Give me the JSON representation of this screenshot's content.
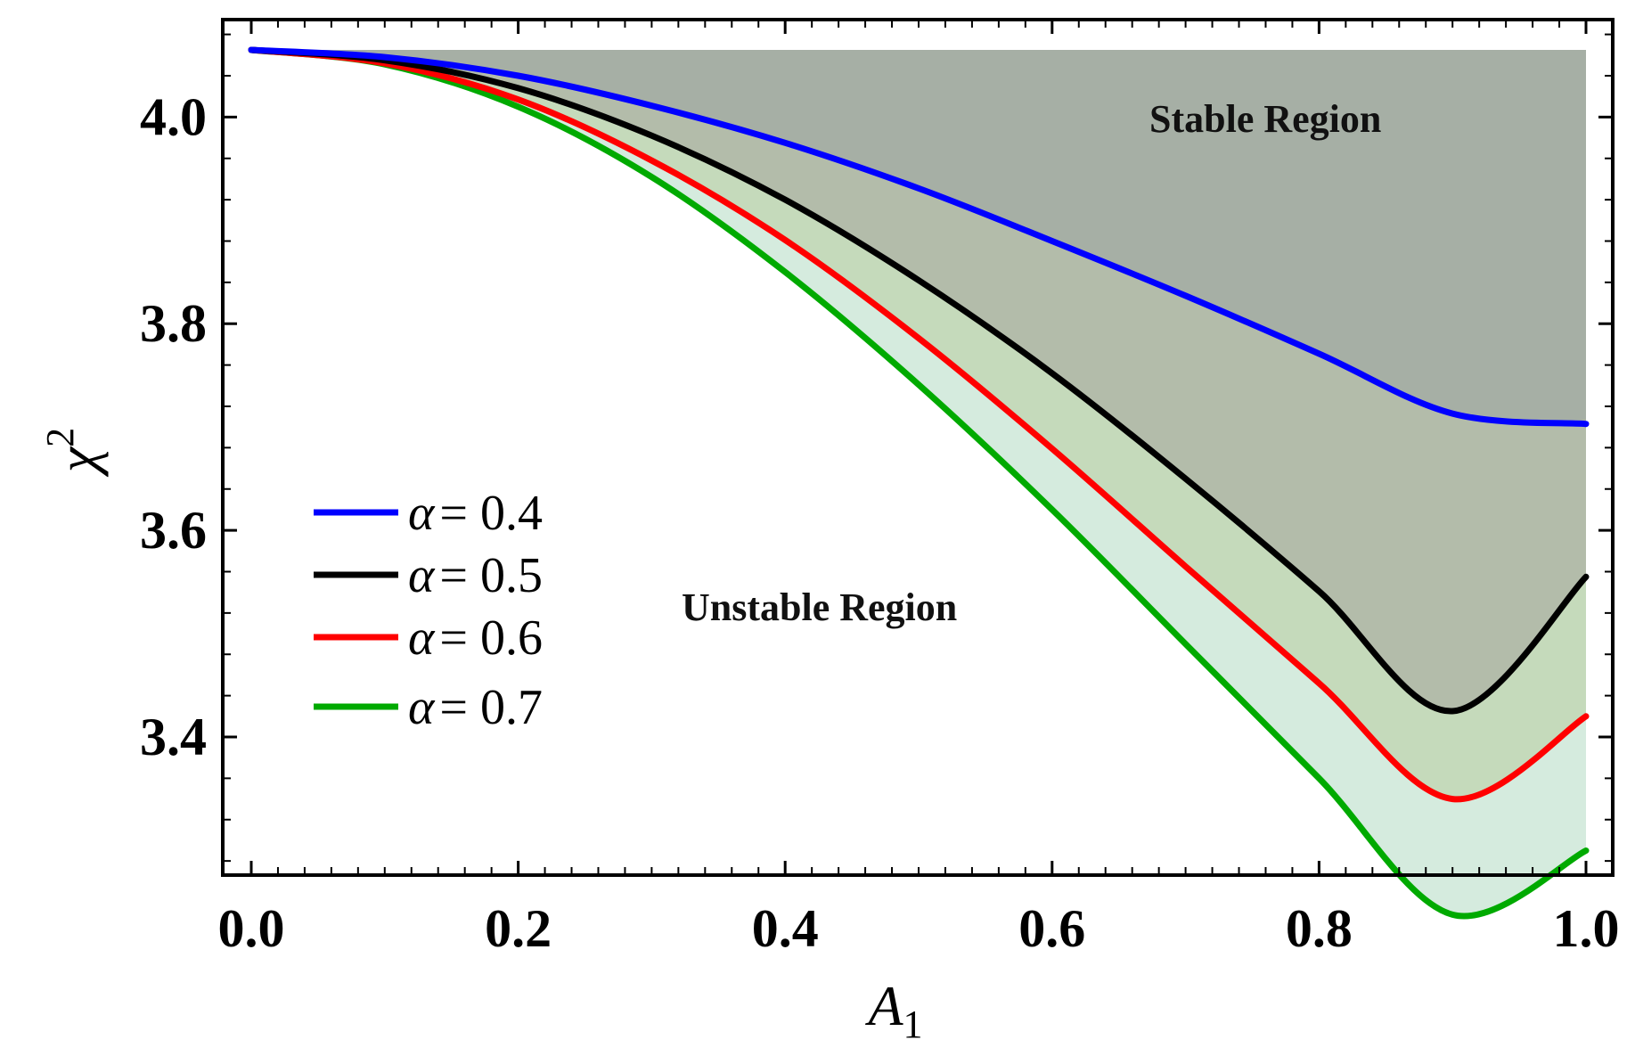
{
  "chart_data": {
    "type": "line",
    "title": "",
    "xlabel": "A",
    "xlabel_subscript": "1",
    "ylabel": "χ",
    "ylabel_superscript": "2",
    "xlim": [
      0.0,
      1.0
    ],
    "ylim": [
      3.28,
      4.07
    ],
    "grid": false,
    "legend_position": "left-middle",
    "x_ticks": [
      0.0,
      0.2,
      0.4,
      0.6,
      0.8,
      1.0
    ],
    "x_tick_labels": [
      "0.0",
      "0.2",
      "0.4",
      "0.6",
      "0.8",
      "1.0"
    ],
    "y_ticks": [
      3.4,
      3.6,
      3.8,
      4.0
    ],
    "y_tick_labels": [
      "3.4",
      "3.6",
      "3.8",
      "4.0"
    ],
    "upper_bound": 4.065,
    "x": [
      0.0,
      0.1,
      0.2,
      0.3,
      0.4,
      0.5,
      0.6,
      0.7,
      0.8,
      0.9,
      1.0
    ],
    "series": [
      {
        "name": "α = 0.4",
        "legend_symbol": "α",
        "legend_value": "= 0.4",
        "color": "#0000ff",
        "values": [
          4.065,
          4.058,
          4.04,
          4.011,
          3.975,
          3.931,
          3.88,
          3.827,
          3.771,
          3.713,
          3.703
        ]
      },
      {
        "name": "α = 0.5",
        "legend_symbol": "α",
        "legend_value": "= 0.5",
        "color": "#000000",
        "values": [
          4.065,
          4.055,
          4.028,
          3.982,
          3.92,
          3.842,
          3.752,
          3.65,
          3.541,
          3.425,
          3.555
        ]
      },
      {
        "name": "α = 0.6",
        "legend_symbol": "α",
        "legend_value": "= 0.6",
        "color": "#ff0000",
        "values": [
          4.065,
          4.052,
          4.017,
          3.958,
          3.881,
          3.786,
          3.679,
          3.565,
          3.452,
          3.34,
          3.42
        ]
      },
      {
        "name": "α = 0.7",
        "legend_symbol": "α",
        "legend_value": "= 0.7",
        "color": "#00aa00",
        "values": [
          4.065,
          4.051,
          4.01,
          3.942,
          3.85,
          3.741,
          3.62,
          3.49,
          3.36,
          3.228,
          3.29
        ]
      }
    ],
    "annotations": [
      {
        "text": "Stable Region",
        "position": "upper-right"
      },
      {
        "text": "Unstable Region",
        "position": "center-left"
      }
    ],
    "fill_colors": {
      "stable": "#a6afa5",
      "band_0_4_to_0_5": "#b3bcaa",
      "band_0_5_to_0_6": "#c5dabb",
      "band_0_6_to_0_7": "#d5ebde"
    }
  }
}
